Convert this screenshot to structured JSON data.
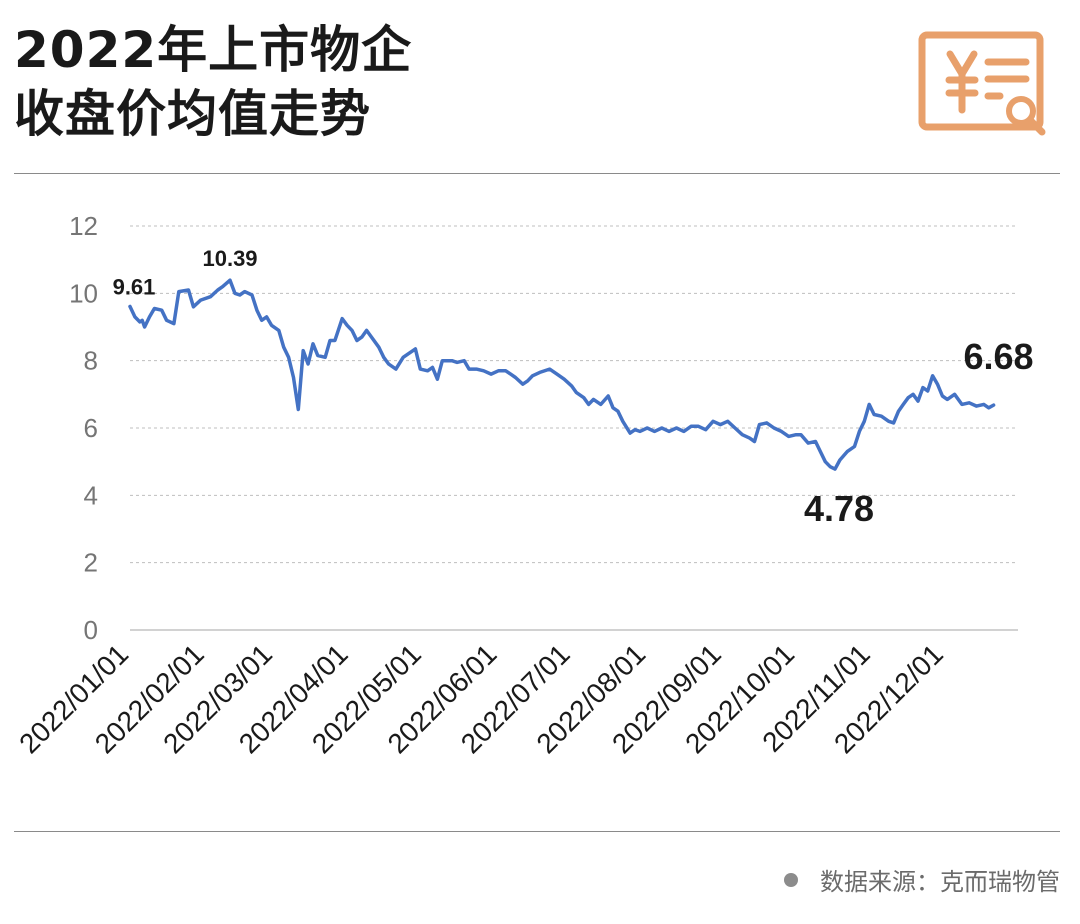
{
  "header": {
    "title_line1": "2022年上市物企",
    "title_line2": "收盘价均值走势"
  },
  "footer": {
    "source": "数据来源：克而瑞物管"
  },
  "icons": {
    "logo": "yuan-document-search-icon",
    "source_bullet": "dot-icon"
  },
  "colors": {
    "line": "#4472c4",
    "grid": "#bfbfbf",
    "logo": "#e8a06b",
    "text": "#1a1a1a"
  },
  "chart_data": {
    "type": "line",
    "title": "2022年上市物企收盘价均值走势",
    "xlabel": "",
    "ylabel": "",
    "ylim": [
      0,
      12
    ],
    "yticks": [
      0,
      2,
      4,
      6,
      8,
      10,
      12
    ],
    "xlim": [
      "2022-01-01",
      "2022-12-31"
    ],
    "xtick_labels": [
      "2022/01/01",
      "2022/02/01",
      "2022/03/01",
      "2022/04/01",
      "2022/05/01",
      "2022/06/01",
      "2022/07/01",
      "2022/08/01",
      "2022/09/01",
      "2022/10/01",
      "2022/11/01",
      "2022/12/01"
    ],
    "grid": "horizontal-dashed",
    "legend": "none",
    "series": [
      {
        "points": [
          [
            "2022-01-01",
            9.61
          ],
          [
            "2022-01-03",
            9.3
          ],
          [
            "2022-01-05",
            9.15
          ],
          [
            "2022-01-06",
            9.2
          ],
          [
            "2022-01-07",
            9.0
          ],
          [
            "2022-01-09",
            9.3
          ],
          [
            "2022-01-11",
            9.55
          ],
          [
            "2022-01-14",
            9.5
          ],
          [
            "2022-01-16",
            9.2
          ],
          [
            "2022-01-19",
            9.1
          ],
          [
            "2022-01-21",
            10.05
          ],
          [
            "2022-01-25",
            10.1
          ],
          [
            "2022-01-27",
            9.6
          ],
          [
            "2022-01-30",
            9.8
          ],
          [
            "2022-02-03",
            9.9
          ],
          [
            "2022-02-06",
            10.1
          ],
          [
            "2022-02-08",
            10.2
          ],
          [
            "2022-02-11",
            10.39
          ],
          [
            "2022-02-13",
            10.0
          ],
          [
            "2022-02-15",
            9.95
          ],
          [
            "2022-02-17",
            10.05
          ],
          [
            "2022-02-20",
            9.95
          ],
          [
            "2022-02-22",
            9.5
          ],
          [
            "2022-02-24",
            9.2
          ],
          [
            "2022-02-26",
            9.3
          ],
          [
            "2022-02-28",
            9.05
          ],
          [
            "2022-03-03",
            8.9
          ],
          [
            "2022-03-05",
            8.4
          ],
          [
            "2022-03-07",
            8.1
          ],
          [
            "2022-03-09",
            7.5
          ],
          [
            "2022-03-11",
            6.55
          ],
          [
            "2022-03-13",
            8.3
          ],
          [
            "2022-03-15",
            7.9
          ],
          [
            "2022-03-17",
            8.5
          ],
          [
            "2022-03-19",
            8.15
          ],
          [
            "2022-03-22",
            8.1
          ],
          [
            "2022-03-24",
            8.6
          ],
          [
            "2022-03-26",
            8.6
          ],
          [
            "2022-03-29",
            9.25
          ],
          [
            "2022-03-31",
            9.05
          ],
          [
            "2022-04-02",
            8.9
          ],
          [
            "2022-04-04",
            8.6
          ],
          [
            "2022-04-06",
            8.7
          ],
          [
            "2022-04-08",
            8.9
          ],
          [
            "2022-04-10",
            8.7
          ],
          [
            "2022-04-13",
            8.4
          ],
          [
            "2022-04-15",
            8.1
          ],
          [
            "2022-04-17",
            7.9
          ],
          [
            "2022-04-20",
            7.75
          ],
          [
            "2022-04-23",
            8.1
          ],
          [
            "2022-04-25",
            8.2
          ],
          [
            "2022-04-28",
            8.35
          ],
          [
            "2022-04-30",
            7.75
          ],
          [
            "2022-05-03",
            7.7
          ],
          [
            "2022-05-05",
            7.8
          ],
          [
            "2022-05-07",
            7.45
          ],
          [
            "2022-05-09",
            8.0
          ],
          [
            "2022-05-13",
            8.0
          ],
          [
            "2022-05-15",
            7.95
          ],
          [
            "2022-05-18",
            8.0
          ],
          [
            "2022-05-20",
            7.75
          ],
          [
            "2022-05-23",
            7.75
          ],
          [
            "2022-05-26",
            7.7
          ],
          [
            "2022-05-29",
            7.6
          ],
          [
            "2022-06-01",
            7.7
          ],
          [
            "2022-06-04",
            7.7
          ],
          [
            "2022-06-06",
            7.6
          ],
          [
            "2022-06-08",
            7.5
          ],
          [
            "2022-06-11",
            7.3
          ],
          [
            "2022-06-13",
            7.4
          ],
          [
            "2022-06-15",
            7.55
          ],
          [
            "2022-06-18",
            7.65
          ],
          [
            "2022-06-22",
            7.75
          ],
          [
            "2022-06-25",
            7.6
          ],
          [
            "2022-06-28",
            7.45
          ],
          [
            "2022-07-01",
            7.25
          ],
          [
            "2022-07-03",
            7.05
          ],
          [
            "2022-07-06",
            6.9
          ],
          [
            "2022-07-08",
            6.7
          ],
          [
            "2022-07-10",
            6.85
          ],
          [
            "2022-07-13",
            6.7
          ],
          [
            "2022-07-16",
            6.95
          ],
          [
            "2022-07-18",
            6.6
          ],
          [
            "2022-07-20",
            6.5
          ],
          [
            "2022-07-22",
            6.2
          ],
          [
            "2022-07-25",
            5.85
          ],
          [
            "2022-07-27",
            5.95
          ],
          [
            "2022-07-29",
            5.9
          ],
          [
            "2022-08-01",
            6.0
          ],
          [
            "2022-08-04",
            5.9
          ],
          [
            "2022-08-07",
            6.0
          ],
          [
            "2022-08-10",
            5.9
          ],
          [
            "2022-08-13",
            6.0
          ],
          [
            "2022-08-16",
            5.9
          ],
          [
            "2022-08-19",
            6.05
          ],
          [
            "2022-08-22",
            6.05
          ],
          [
            "2022-08-25",
            5.95
          ],
          [
            "2022-08-28",
            6.2
          ],
          [
            "2022-08-31",
            6.1
          ],
          [
            "2022-09-03",
            6.2
          ],
          [
            "2022-09-06",
            6.0
          ],
          [
            "2022-09-09",
            5.8
          ],
          [
            "2022-09-12",
            5.7
          ],
          [
            "2022-09-14",
            5.6
          ],
          [
            "2022-09-16",
            6.1
          ],
          [
            "2022-09-19",
            6.15
          ],
          [
            "2022-09-22",
            6.0
          ],
          [
            "2022-09-25",
            5.9
          ],
          [
            "2022-09-28",
            5.75
          ],
          [
            "2022-10-01",
            5.8
          ],
          [
            "2022-10-03",
            5.8
          ],
          [
            "2022-10-06",
            5.55
          ],
          [
            "2022-10-09",
            5.6
          ],
          [
            "2022-10-11",
            5.3
          ],
          [
            "2022-10-13",
            5.0
          ],
          [
            "2022-10-15",
            4.85
          ],
          [
            "2022-10-17",
            4.78
          ],
          [
            "2022-10-19",
            5.05
          ],
          [
            "2022-10-22",
            5.3
          ],
          [
            "2022-10-25",
            5.45
          ],
          [
            "2022-10-27",
            5.9
          ],
          [
            "2022-10-29",
            6.2
          ],
          [
            "2022-10-31",
            6.7
          ],
          [
            "2022-11-02",
            6.4
          ],
          [
            "2022-11-05",
            6.35
          ],
          [
            "2022-11-08",
            6.2
          ],
          [
            "2022-11-10",
            6.15
          ],
          [
            "2022-11-12",
            6.5
          ],
          [
            "2022-11-14",
            6.7
          ],
          [
            "2022-11-16",
            6.9
          ],
          [
            "2022-11-18",
            7.0
          ],
          [
            "2022-11-20",
            6.8
          ],
          [
            "2022-11-22",
            7.2
          ],
          [
            "2022-11-24",
            7.1
          ],
          [
            "2022-11-26",
            7.55
          ],
          [
            "2022-11-28",
            7.3
          ],
          [
            "2022-11-30",
            6.95
          ],
          [
            "2022-12-02",
            6.85
          ],
          [
            "2022-12-05",
            7.0
          ],
          [
            "2022-12-08",
            6.7
          ],
          [
            "2022-12-11",
            6.75
          ],
          [
            "2022-12-14",
            6.65
          ],
          [
            "2022-12-17",
            6.7
          ],
          [
            "2022-12-19",
            6.6
          ],
          [
            "2022-12-21",
            6.68
          ]
        ]
      }
    ],
    "annotations": [
      {
        "x": "2022-01-01",
        "y": 9.61,
        "text": "9.61"
      },
      {
        "x": "2022-02-11",
        "y": 10.39,
        "text": "10.39"
      },
      {
        "x": "2022-10-17",
        "y": 4.78,
        "text": "4.78"
      },
      {
        "x": "2022-12-21",
        "y": 6.68,
        "text": "6.68"
      }
    ]
  }
}
